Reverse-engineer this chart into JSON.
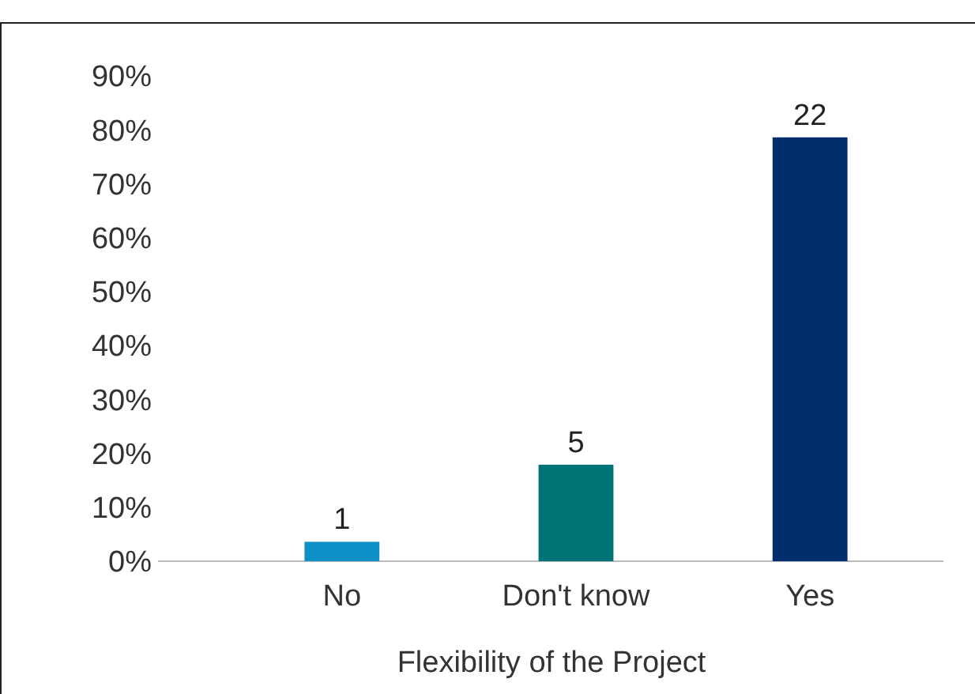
{
  "chart_data": {
    "type": "bar",
    "xlabel": "Flexibility of the Project",
    "categories": [
      "No",
      "Don't know",
      "Yes"
    ],
    "values": [
      3.6,
      17.9,
      78.6
    ],
    "colors": [
      "#0e90c6",
      "#007377",
      "#002d6b"
    ],
    "annotations": [
      {
        "text": "1",
        "x": "No",
        "y": 3.6
      },
      {
        "text": "5",
        "x": "Don't know",
        "y": 17.9
      },
      {
        "text": "22",
        "x": "Yes",
        "y": 78.6
      }
    ],
    "ylim": [
      0,
      90
    ],
    "yticks": [
      {
        "value": 0,
        "label": "0%"
      },
      {
        "value": 10,
        "label": "10%"
      },
      {
        "value": 20,
        "label": "20%"
      },
      {
        "value": 30,
        "label": "30%"
      },
      {
        "value": 40,
        "label": "40%"
      },
      {
        "value": 50,
        "label": "50%"
      },
      {
        "value": 60,
        "label": "60%"
      },
      {
        "value": 70,
        "label": "70%"
      },
      {
        "value": 80,
        "label": "80%"
      },
      {
        "value": 90,
        "label": "90%"
      }
    ],
    "grid": false
  }
}
